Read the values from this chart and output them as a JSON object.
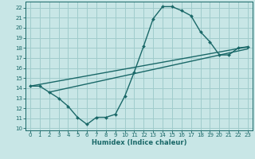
{
  "xlabel": "Humidex (Indice chaleur)",
  "ylabel": "",
  "bg_color": "#c8e6e6",
  "grid_color": "#a0cccc",
  "line_color": "#1a6868",
  "spine_color": "#1a6868",
  "xlim": [
    -0.5,
    23.5
  ],
  "ylim": [
    9.8,
    22.6
  ],
  "xticks": [
    0,
    1,
    2,
    3,
    4,
    5,
    6,
    7,
    8,
    9,
    10,
    11,
    12,
    13,
    14,
    15,
    16,
    17,
    18,
    19,
    20,
    21,
    22,
    23
  ],
  "yticks": [
    10,
    11,
    12,
    13,
    14,
    15,
    16,
    17,
    18,
    19,
    20,
    21,
    22
  ],
  "line1_x": [
    0,
    1,
    2,
    3,
    4,
    5,
    6,
    7,
    8,
    9,
    10,
    11,
    12,
    13,
    14,
    15,
    16,
    17,
    18,
    19,
    20,
    21,
    22,
    23
  ],
  "line1_y": [
    14.2,
    14.2,
    13.6,
    13.0,
    12.2,
    11.1,
    10.4,
    11.1,
    11.1,
    11.4,
    13.2,
    15.6,
    18.2,
    20.9,
    22.1,
    22.1,
    21.7,
    21.2,
    19.6,
    18.6,
    17.3,
    17.3,
    18.0,
    18.1
  ],
  "line2_x": [
    0,
    23
  ],
  "line2_y": [
    14.2,
    18.1
  ],
  "line3_x": [
    2,
    23
  ],
  "line3_y": [
    13.6,
    17.9
  ],
  "tick_fontsize": 5.0,
  "xlabel_fontsize": 6.0,
  "lw": 1.0,
  "ms": 2.0
}
